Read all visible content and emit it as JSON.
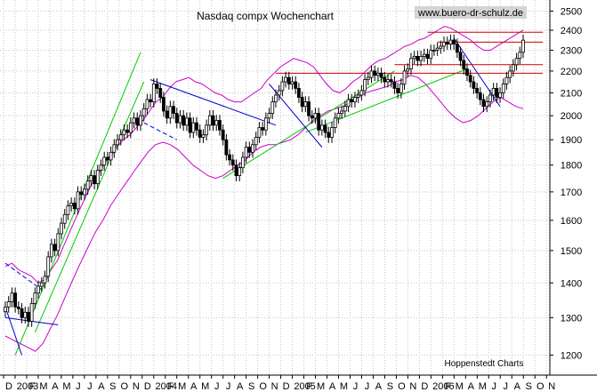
{
  "chart_data": {
    "type": "candlestick",
    "title": "Nasdaq compx Wochenchart",
    "watermark_url": "www.buero-dr-schulz.de",
    "source": "Hoppenstedt Charts",
    "y_scale": "log",
    "ylim": [
      1150,
      2560
    ],
    "y_ticks": [
      1200,
      1300,
      1400,
      1500,
      1600,
      1700,
      1800,
      1900,
      2000,
      2100,
      2200,
      2300,
      2400,
      2500
    ],
    "x_month_labels": [
      "D",
      "2003",
      "F",
      "M",
      "A",
      "M",
      "J",
      "J",
      "A",
      "S",
      "O",
      "N",
      "D",
      "2004",
      "F",
      "M",
      "A",
      "M",
      "J",
      "J",
      "A",
      "S",
      "O",
      "N",
      "D",
      "2005",
      "F",
      "M",
      "A",
      "M",
      "J",
      "J",
      "A",
      "S",
      "O",
      "N",
      "D",
      "2006",
      "F",
      "M",
      "A",
      "M",
      "J",
      "J",
      "A",
      "S",
      "O",
      "N"
    ],
    "grid": true,
    "colors": {
      "candles": "#000000",
      "bands": "#cc00cc",
      "uptrend": "#00cc00",
      "downtrend": "#0000cc",
      "resistance": "#cc0000",
      "grid": "#c8c8c8"
    },
    "weekly_close": [
      1330,
      1345,
      1370,
      1330,
      1325,
      1300,
      1315,
      1290,
      1340,
      1370,
      1390,
      1400,
      1420,
      1480,
      1520,
      1500,
      1555,
      1590,
      1620,
      1650,
      1660,
      1640,
      1700,
      1690,
      1710,
      1740,
      1760,
      1730,
      1780,
      1800,
      1830,
      1820,
      1850,
      1880,
      1900,
      1920,
      1940,
      1930,
      1970,
      1990,
      1960,
      2000,
      2030,
      2070,
      2060,
      2140,
      2120,
      2080,
      2020,
      1990,
      2040,
      2010,
      1970,
      2000,
      1960,
      1990,
      1930,
      1970,
      1940,
      1910,
      1920,
      1960,
      2000,
      1960,
      1980,
      1940,
      1900,
      1840,
      1820,
      1800,
      1760,
      1790,
      1830,
      1870,
      1850,
      1880,
      1910,
      1950,
      1940,
      1990,
      2010,
      2060,
      2090,
      2110,
      2150,
      2170,
      2140,
      2150,
      2120,
      2080,
      2040,
      2060,
      2000,
      1990,
      2010,
      1940,
      1960,
      1930,
      1910,
      1950,
      1990,
      2010,
      2020,
      2040,
      2070,
      2060,
      2080,
      2090,
      2110,
      2160,
      2170,
      2200,
      2180,
      2190,
      2170,
      2150,
      2160,
      2150,
      2120,
      2100,
      2140,
      2200,
      2210,
      2260,
      2270,
      2250,
      2270,
      2280,
      2260,
      2300,
      2300,
      2310,
      2320,
      2340,
      2330,
      2350,
      2330,
      2290,
      2250,
      2210,
      2180,
      2150,
      2120,
      2100,
      2070,
      2040,
      2060,
      2090,
      2120,
      2080,
      2100,
      2140,
      2170,
      2200,
      2230,
      2260,
      2290,
      2350
    ],
    "bollinger_upper": [
      1450,
      1460,
      1440,
      1430,
      1420,
      1400,
      1410,
      1440,
      1470,
      1520,
      1570,
      1620,
      1670,
      1720,
      1760,
      1800,
      1840,
      1870,
      1900,
      1920,
      1950,
      1980,
      2020,
      2060,
      2080,
      2120,
      2150,
      2160,
      2170,
      2150,
      2140,
      2120,
      2100,
      2090,
      2070,
      2060,
      2060,
      2080,
      2100,
      2120,
      2160,
      2190,
      2220,
      2240,
      2260,
      2250,
      2240,
      2220,
      2180,
      2140,
      2110,
      2100,
      2120,
      2150,
      2170,
      2200,
      2230,
      2250,
      2260,
      2280,
      2300,
      2320,
      2330,
      2350,
      2360,
      2380,
      2400,
      2420,
      2410,
      2390,
      2370,
      2350,
      2320,
      2300,
      2300,
      2320,
      2340,
      2360,
      2380,
      2400
    ],
    "bollinger_lower": [
      1250,
      1240,
      1230,
      1220,
      1210,
      1230,
      1270,
      1310,
      1360,
      1410,
      1460,
      1510,
      1560,
      1600,
      1650,
      1690,
      1730,
      1770,
      1810,
      1850,
      1880,
      1890,
      1880,
      1860,
      1830,
      1800,
      1780,
      1760,
      1750,
      1760,
      1780,
      1800,
      1820,
      1850,
      1870,
      1880,
      1880,
      1890,
      1900,
      1920,
      1950,
      1980,
      2000,
      2020,
      2030,
      2040,
      2060,
      2080,
      2100,
      2110,
      2120,
      2130,
      2150,
      2160,
      2180,
      2170,
      2140,
      2100,
      2060,
      2020,
      1990,
      1970,
      1980,
      2000,
      2030,
      2060,
      2080,
      2060,
      2040,
      2030
    ]
  }
}
